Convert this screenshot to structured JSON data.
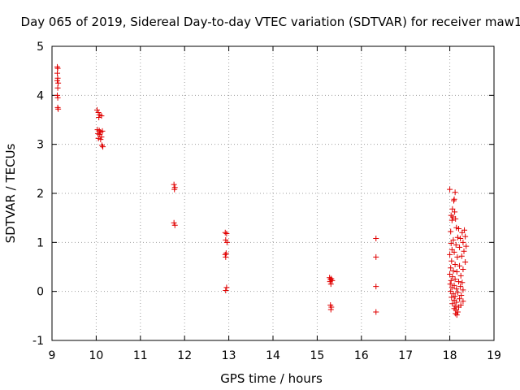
{
  "chart_data": {
    "type": "scatter",
    "title": "Day 065 of 2019, Sidereal Day-to-day VTEC variation (SDTVAR) for receiver maw1",
    "xlabel": "GPS time / hours",
    "ylabel": "SDTVAR / TECUs",
    "xlim": [
      9,
      19
    ],
    "ylim": [
      -1,
      5
    ],
    "xticks": [
      9,
      10,
      11,
      12,
      13,
      14,
      15,
      16,
      17,
      18,
      19
    ],
    "xtick_labels": [
      "9",
      "10",
      "11",
      "12",
      "13",
      "14",
      "15",
      "16",
      "17",
      "18",
      "19"
    ],
    "yticks": [
      -1,
      0,
      1,
      2,
      3,
      4,
      5
    ],
    "ytick_labels": [
      "-1",
      "0",
      "1",
      "2",
      "3",
      "4",
      "5"
    ],
    "grid": true,
    "marker": "+",
    "color": "#e00000",
    "series": [
      {
        "name": "SDTVAR",
        "points": [
          [
            9.12,
            4.58
          ],
          [
            9.13,
            4.55
          ],
          [
            9.12,
            4.45
          ],
          [
            9.13,
            4.35
          ],
          [
            9.12,
            4.3
          ],
          [
            9.14,
            4.25
          ],
          [
            9.13,
            4.15
          ],
          [
            9.12,
            4.0
          ],
          [
            9.13,
            3.95
          ],
          [
            9.13,
            3.75
          ],
          [
            9.14,
            3.72
          ],
          [
            10.02,
            3.7
          ],
          [
            10.05,
            3.65
          ],
          [
            10.08,
            3.6
          ],
          [
            10.12,
            3.58
          ],
          [
            10.06,
            3.55
          ],
          [
            10.03,
            3.3
          ],
          [
            10.07,
            3.28
          ],
          [
            10.1,
            3.25
          ],
          [
            10.14,
            3.27
          ],
          [
            10.04,
            3.22
          ],
          [
            10.08,
            3.2
          ],
          [
            10.12,
            3.15
          ],
          [
            10.05,
            3.12
          ],
          [
            10.1,
            3.1
          ],
          [
            10.13,
            2.98
          ],
          [
            10.15,
            2.95
          ],
          [
            11.76,
            2.18
          ],
          [
            11.78,
            2.12
          ],
          [
            11.77,
            2.08
          ],
          [
            11.76,
            1.4
          ],
          [
            11.78,
            1.35
          ],
          [
            12.92,
            1.2
          ],
          [
            12.95,
            1.18
          ],
          [
            12.93,
            1.05
          ],
          [
            12.96,
            1.0
          ],
          [
            12.94,
            0.78
          ],
          [
            12.92,
            0.75
          ],
          [
            12.93,
            0.7
          ],
          [
            12.95,
            0.08
          ],
          [
            12.93,
            0.02
          ],
          [
            15.28,
            0.28
          ],
          [
            15.32,
            0.26
          ],
          [
            15.3,
            0.24
          ],
          [
            15.34,
            0.22
          ],
          [
            15.29,
            0.2
          ],
          [
            15.31,
            0.15
          ],
          [
            15.3,
            -0.28
          ],
          [
            15.32,
            -0.32
          ],
          [
            15.31,
            -0.37
          ],
          [
            16.33,
            1.08
          ],
          [
            16.33,
            0.7
          ],
          [
            16.33,
            0.1
          ],
          [
            16.33,
            -0.42
          ],
          [
            18.0,
            2.08
          ],
          [
            18.12,
            2.02
          ],
          [
            18.1,
            1.88
          ],
          [
            18.09,
            1.85
          ],
          [
            18.06,
            1.68
          ],
          [
            18.11,
            1.62
          ],
          [
            18.03,
            1.55
          ],
          [
            18.07,
            1.52
          ],
          [
            18.13,
            1.48
          ],
          [
            18.05,
            1.45
          ],
          [
            18.15,
            1.3
          ],
          [
            18.2,
            1.28
          ],
          [
            18.33,
            1.25
          ],
          [
            18.02,
            1.22
          ],
          [
            18.28,
            1.2
          ],
          [
            18.35,
            1.12
          ],
          [
            18.18,
            1.1
          ],
          [
            18.24,
            1.08
          ],
          [
            18.08,
            1.05
          ],
          [
            18.3,
            1.0
          ],
          [
            18.03,
            0.98
          ],
          [
            18.14,
            0.95
          ],
          [
            18.37,
            0.92
          ],
          [
            18.22,
            0.9
          ],
          [
            18.05,
            0.85
          ],
          [
            18.32,
            0.82
          ],
          [
            18.1,
            0.8
          ],
          [
            18.0,
            0.75
          ],
          [
            18.27,
            0.72
          ],
          [
            18.17,
            0.7
          ],
          [
            18.04,
            0.62
          ],
          [
            18.35,
            0.6
          ],
          [
            18.12,
            0.55
          ],
          [
            18.22,
            0.52
          ],
          [
            18.02,
            0.48
          ],
          [
            18.3,
            0.45
          ],
          [
            18.08,
            0.42
          ],
          [
            18.16,
            0.4
          ],
          [
            18.0,
            0.35
          ],
          [
            18.25,
            0.32
          ],
          [
            18.06,
            0.3
          ],
          [
            18.12,
            0.25
          ],
          [
            18.03,
            0.22
          ],
          [
            18.2,
            0.2
          ],
          [
            18.28,
            0.18
          ],
          [
            18.01,
            0.15
          ],
          [
            18.1,
            0.12
          ],
          [
            18.24,
            0.1
          ],
          [
            18.05,
            0.08
          ],
          [
            18.15,
            0.05
          ],
          [
            18.3,
            0.03
          ],
          [
            18.02,
            0.0
          ],
          [
            18.18,
            -0.02
          ],
          [
            18.08,
            -0.05
          ],
          [
            18.26,
            -0.08
          ],
          [
            18.12,
            -0.1
          ],
          [
            18.04,
            -0.12
          ],
          [
            18.22,
            -0.15
          ],
          [
            18.1,
            -0.18
          ],
          [
            18.3,
            -0.2
          ],
          [
            18.15,
            -0.22
          ],
          [
            18.06,
            -0.25
          ],
          [
            18.25,
            -0.28
          ],
          [
            18.12,
            -0.3
          ],
          [
            18.2,
            -0.32
          ],
          [
            18.1,
            -0.35
          ],
          [
            18.14,
            -0.38
          ],
          [
            18.18,
            -0.42
          ],
          [
            18.13,
            -0.45
          ],
          [
            18.16,
            -0.48
          ]
        ]
      }
    ]
  }
}
